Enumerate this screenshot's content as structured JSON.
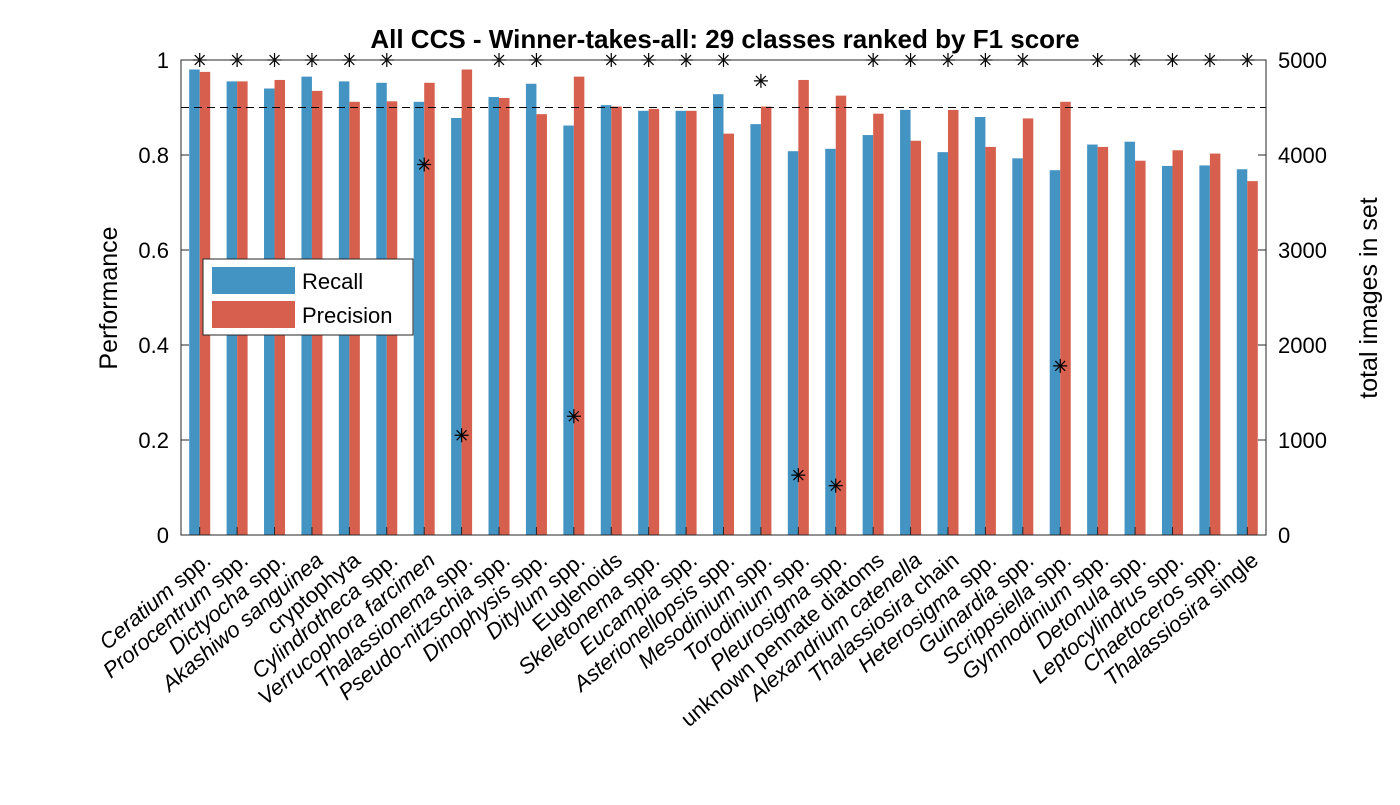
{
  "chart_data": {
    "type": "bar",
    "title": "All CCS - Winner-takes-all: 29 classes ranked by F1 score",
    "ylabel": "Performance",
    "y2label": "total images in set",
    "ylim": [
      0,
      1
    ],
    "y2lim": [
      0,
      5000
    ],
    "yticks": [
      "0",
      "0.2",
      "0.4",
      "0.6",
      "0.8",
      "1"
    ],
    "y2ticks": [
      "0",
      "1000",
      "2000",
      "3000",
      "4000",
      "5000"
    ],
    "reference_line": 0.9,
    "legend_position": "left",
    "categories": [
      {
        "pre": "",
        "it": "Ceratium",
        "post": " spp."
      },
      {
        "pre": "",
        "it": "Prorocentrum",
        "post": " spp."
      },
      {
        "pre": "",
        "it": "Dictyocha",
        "post": " spp."
      },
      {
        "pre": "",
        "it": "Akashiwo sanguinea",
        "post": ""
      },
      {
        "pre": "cryptophyta",
        "it": "",
        "post": ""
      },
      {
        "pre": "",
        "it": "Cylindrotheca",
        "post": " spp."
      },
      {
        "pre": "",
        "it": "Verrucophora farcimen",
        "post": ""
      },
      {
        "pre": "",
        "it": "Thalassionema",
        "post": " spp."
      },
      {
        "pre": "",
        "it": "Pseudo-nitzschia",
        "post": " spp."
      },
      {
        "pre": "",
        "it": "Dinophysis",
        "post": " spp."
      },
      {
        "pre": "",
        "it": "Ditylum",
        "post": " spp."
      },
      {
        "pre": "Euglenoids",
        "it": "",
        "post": ""
      },
      {
        "pre": "",
        "it": "Skeletonema",
        "post": " spp."
      },
      {
        "pre": "",
        "it": "Eucampia",
        "post": " spp."
      },
      {
        "pre": "",
        "it": "Asterionellopsis",
        "post": " spp."
      },
      {
        "pre": "",
        "it": "Mesodinium",
        "post": " spp."
      },
      {
        "pre": "",
        "it": "Torodinium",
        "post": " spp."
      },
      {
        "pre": "",
        "it": "Pleurosigma",
        "post": " spp."
      },
      {
        "pre": "unknown pennate diatoms",
        "it": "",
        "post": ""
      },
      {
        "pre": "",
        "it": "Alexandrium catenella",
        "post": ""
      },
      {
        "pre": "",
        "it": "Thalassiosira",
        "post": " chain"
      },
      {
        "pre": "",
        "it": "Heterosigma",
        "post": " spp."
      },
      {
        "pre": "",
        "it": "Guinardia",
        "post": " spp."
      },
      {
        "pre": "",
        "it": "Scrippsiella",
        "post": " spp."
      },
      {
        "pre": "",
        "it": "Gymnodinium",
        "post": " spp."
      },
      {
        "pre": "",
        "it": "Detonula",
        "post": " spp."
      },
      {
        "pre": "",
        "it": "Leptocylindrus",
        "post": " spp."
      },
      {
        "pre": "",
        "it": "Chaetoceros",
        "post": " spp."
      },
      {
        "pre": "",
        "it": "Thalassiosira",
        "post": " single"
      }
    ],
    "series": [
      {
        "name": "Recall",
        "color": "#4393c3",
        "values": [
          0.98,
          0.955,
          0.94,
          0.965,
          0.955,
          0.952,
          0.912,
          0.878,
          0.922,
          0.95,
          0.862,
          0.905,
          0.893,
          0.893,
          0.928,
          0.865,
          0.808,
          0.813,
          0.842,
          0.895,
          0.806,
          0.88,
          0.793,
          0.768,
          0.822,
          0.828,
          0.777,
          0.778,
          0.77
        ]
      },
      {
        "name": "Precision",
        "color": "#d6604d",
        "values": [
          0.975,
          0.955,
          0.958,
          0.935,
          0.912,
          0.913,
          0.952,
          0.98,
          0.92,
          0.886,
          0.965,
          0.902,
          0.897,
          0.893,
          0.845,
          0.902,
          0.958,
          0.925,
          0.887,
          0.83,
          0.895,
          0.817,
          0.877,
          0.912,
          0.817,
          0.788,
          0.81,
          0.803,
          0.745
        ]
      },
      {
        "name": "total images in set",
        "axis": "right",
        "marker": "*",
        "values": [
          5000,
          5000,
          5000,
          5000,
          5000,
          5000,
          3900,
          1050,
          5000,
          5000,
          1250,
          5000,
          5000,
          5000,
          5000,
          4780,
          630,
          520,
          5000,
          5000,
          5000,
          5000,
          5000,
          1780,
          5000,
          5000,
          5000,
          5000,
          5000
        ]
      }
    ]
  }
}
